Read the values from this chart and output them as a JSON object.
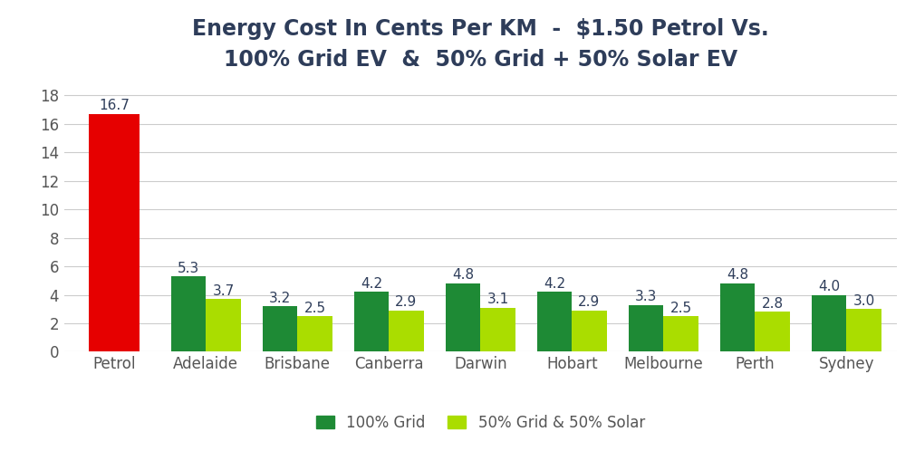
{
  "title": "Energy Cost In Cents Per KM  -  $1.50 Petrol Vs.\n100% Grid EV  &  50% Grid + 50% Solar EV",
  "categories": [
    "Petrol",
    "Adelaide",
    "Brisbane",
    "Canberra",
    "Darwin",
    "Hobart",
    "Melbourne",
    "Perth",
    "Sydney"
  ],
  "petrol_value": 16.7,
  "grid_values": [
    null,
    5.3,
    3.2,
    4.2,
    4.8,
    4.2,
    3.3,
    4.8,
    4.0
  ],
  "solar_values": [
    null,
    3.7,
    2.5,
    2.9,
    3.1,
    2.9,
    2.5,
    2.8,
    3.0
  ],
  "petrol_color": "#e60000",
  "grid_color": "#1e8a35",
  "solar_color": "#aadd00",
  "background_color": "#ffffff",
  "title_color": "#2e3d5a",
  "axis_color": "#2e3d5a",
  "tick_color": "#555555",
  "grid_line_color": "#cccccc",
  "ylim": [
    0,
    19
  ],
  "yticks": [
    0,
    2,
    4,
    6,
    8,
    10,
    12,
    14,
    16,
    18
  ],
  "legend_labels": [
    "100% Grid",
    "50% Grid & 50% Solar"
  ],
  "title_fontsize": 17,
  "tick_fontsize": 12,
  "label_fontsize": 11,
  "bar_width": 0.38,
  "petrol_bar_width": 0.55,
  "figsize": [
    10.1,
    4.98
  ],
  "dpi": 100
}
